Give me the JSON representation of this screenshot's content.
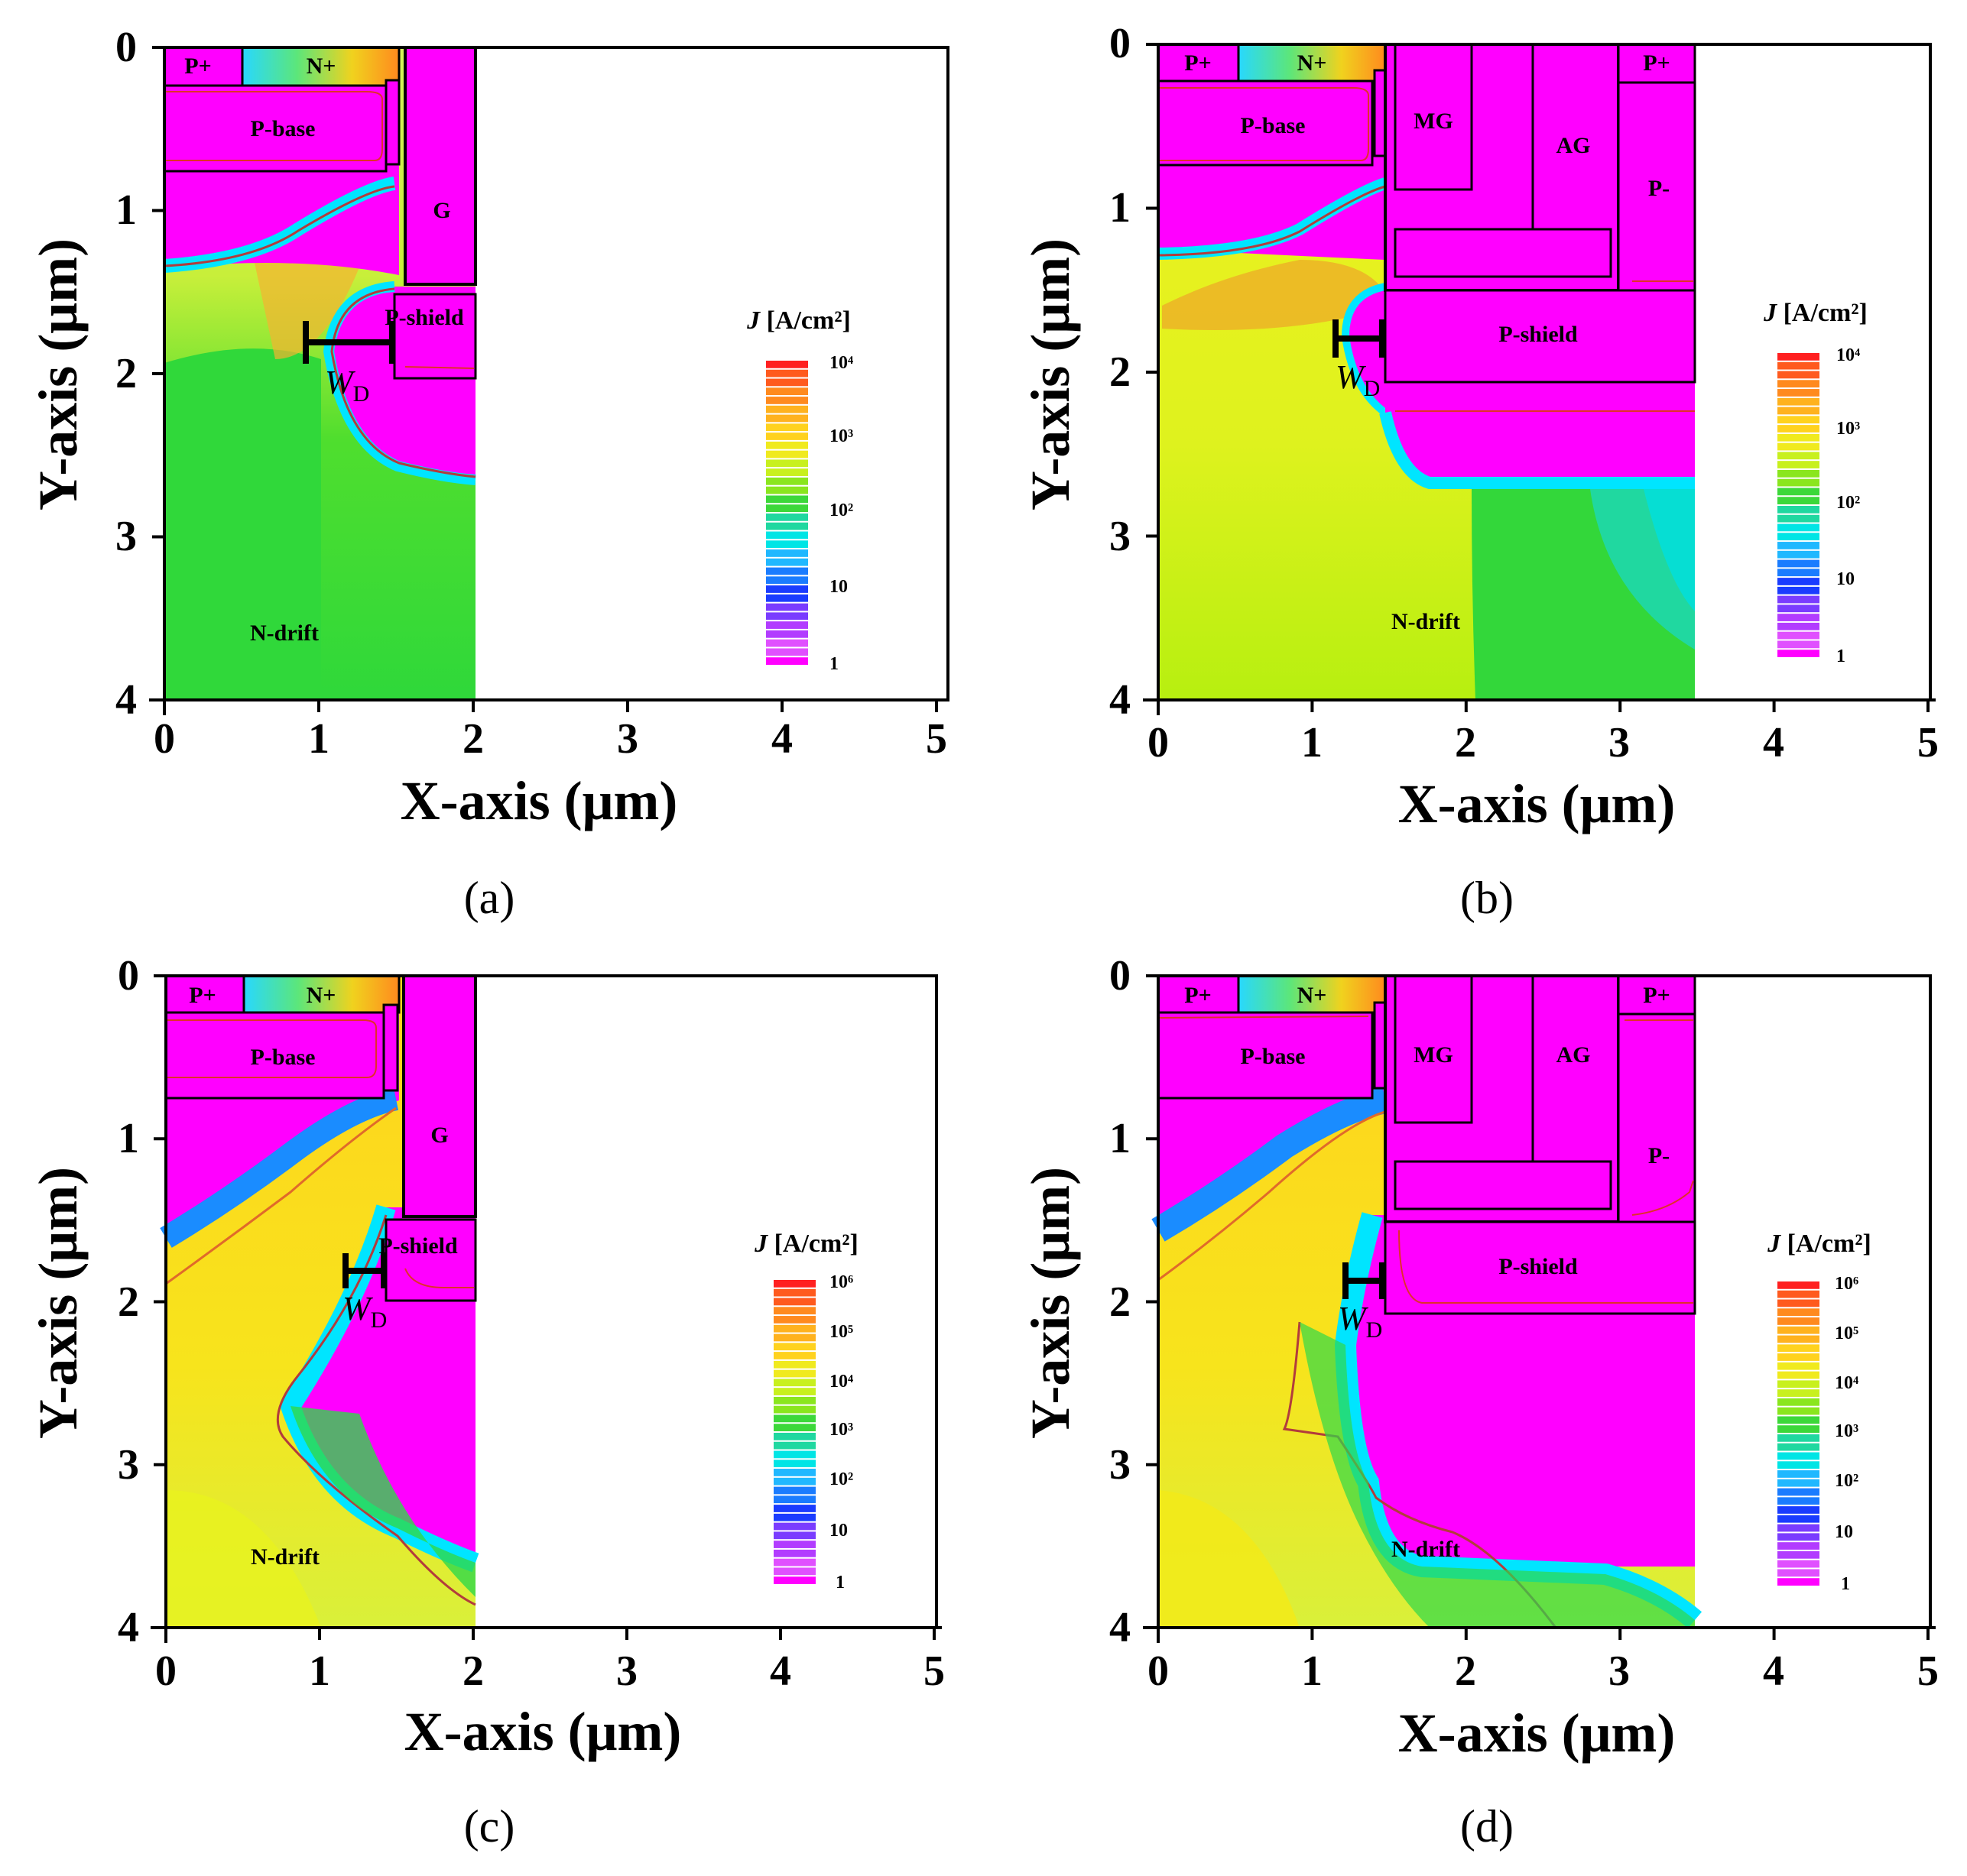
{
  "figure": {
    "panels": [
      {
        "label": "(a)",
        "x_axis_label": "X-axis (μm)",
        "y_axis_label": "Y-axis (μm)",
        "x_ticks": [
          "0",
          "1",
          "2",
          "3",
          "4",
          "5"
        ],
        "y_ticks": [
          "0",
          "1",
          "2",
          "3",
          "4"
        ],
        "regions": [
          "P+",
          "N+",
          "P-base",
          "G",
          "P-shield",
          "N-drift"
        ],
        "dimension_marker": {
          "symbol": "W",
          "subscript": "D"
        },
        "colorbar": {
          "title_symbol": "J",
          "title_units": "[A/cm²]",
          "tick_labels": [
            "10⁴",
            "10³",
            "10²",
            "10",
            "1"
          ]
        }
      },
      {
        "label": "(b)",
        "x_axis_label": "X-axis (μm)",
        "y_axis_label": "Y-axis (μm)",
        "x_ticks": [
          "0",
          "1",
          "2",
          "3",
          "4",
          "5"
        ],
        "y_ticks": [
          "0",
          "1",
          "2",
          "3",
          "4"
        ],
        "regions": [
          "P+",
          "N+",
          "P-base",
          "MG",
          "AG",
          "P+",
          "P-",
          "P-shield",
          "N-drift"
        ],
        "dimension_marker": {
          "symbol": "W",
          "subscript": "D"
        },
        "colorbar": {
          "title_symbol": "J",
          "title_units": "[A/cm²]",
          "tick_labels": [
            "10⁴",
            "10³",
            "10²",
            "10",
            "1"
          ]
        }
      },
      {
        "label": "(c)",
        "x_axis_label": "X-axis (μm)",
        "y_axis_label": "Y-axis (μm)",
        "x_ticks": [
          "0",
          "1",
          "2",
          "3",
          "4",
          "5"
        ],
        "y_ticks": [
          "0",
          "1",
          "2",
          "3",
          "4"
        ],
        "regions": [
          "P+",
          "N+",
          "P-base",
          "G",
          "P-shield",
          "N-drift"
        ],
        "dimension_marker": {
          "symbol": "W",
          "subscript": "D"
        },
        "colorbar": {
          "title_symbol": "J",
          "title_units": "[A/cm²]",
          "tick_labels": [
            "10⁶",
            "10⁵",
            "10⁴",
            "10³",
            "10²",
            "10",
            "1"
          ]
        }
      },
      {
        "label": "(d)",
        "x_axis_label": "X-axis (μm)",
        "y_axis_label": "Y-axis (μm)",
        "x_ticks": [
          "0",
          "1",
          "2",
          "3",
          "4",
          "5"
        ],
        "y_ticks": [
          "0",
          "1",
          "2",
          "3",
          "4"
        ],
        "regions": [
          "P+",
          "N+",
          "P-base",
          "MG",
          "AG",
          "P+",
          "P-",
          "P-shield",
          "N-drift"
        ],
        "dimension_marker": {
          "symbol": "W",
          "subscript": "D"
        },
        "colorbar": {
          "title_symbol": "J",
          "title_units": "[A/cm²]",
          "tick_labels": [
            "10⁶",
            "10⁵",
            "10⁴",
            "10³",
            "10²",
            "10",
            "1"
          ]
        }
      }
    ]
  },
  "chart_data": [
    {
      "type": "heatmap",
      "title": "(a)",
      "xlabel": "X-axis (μm)",
      "ylabel": "Y-axis (μm)",
      "xlim": [
        0,
        5
      ],
      "ylim": [
        4,
        0
      ],
      "device_width_um": 2.0,
      "colorbar_range": [
        1,
        10000
      ],
      "colorbar_scale": "log",
      "colors": {
        "max": "#ff0000",
        "high": "#ffcc00",
        "mid": "#33cc33",
        "low_mid": "#00ffff",
        "low": "#0000ff",
        "min": "#ff00ff"
      }
    },
    {
      "type": "heatmap",
      "title": "(b)",
      "xlabel": "X-axis (μm)",
      "ylabel": "Y-axis (μm)",
      "xlim": [
        0,
        5
      ],
      "ylim": [
        4,
        0
      ],
      "device_width_um": 3.5,
      "colorbar_range": [
        1,
        10000
      ],
      "colorbar_scale": "log",
      "colors": {
        "max": "#ff0000",
        "high": "#ffcc00",
        "mid": "#33cc33",
        "low_mid": "#00ffff",
        "low": "#0000ff",
        "min": "#ff00ff"
      }
    },
    {
      "type": "heatmap",
      "title": "(c)",
      "xlabel": "X-axis (μm)",
      "ylabel": "Y-axis (μm)",
      "xlim": [
        0,
        5
      ],
      "ylim": [
        4,
        0
      ],
      "device_width_um": 2.0,
      "colorbar_range": [
        1,
        1000000
      ],
      "colorbar_scale": "log",
      "colors": {
        "max": "#ff0000",
        "high": "#ffcc00",
        "mid": "#33cc33",
        "low_mid": "#00ffff",
        "low": "#0000ff",
        "min": "#ff00ff"
      }
    },
    {
      "type": "heatmap",
      "title": "(d)",
      "xlabel": "X-axis (μm)",
      "ylabel": "Y-axis (μm)",
      "xlim": [
        0,
        5
      ],
      "ylim": [
        4,
        0
      ],
      "device_width_um": 3.5,
      "colorbar_range": [
        1,
        1000000
      ],
      "colorbar_scale": "log",
      "colors": {
        "max": "#ff0000",
        "high": "#ffcc00",
        "mid": "#33cc33",
        "low_mid": "#00ffff",
        "low": "#0000ff",
        "min": "#ff00ff"
      }
    }
  ]
}
